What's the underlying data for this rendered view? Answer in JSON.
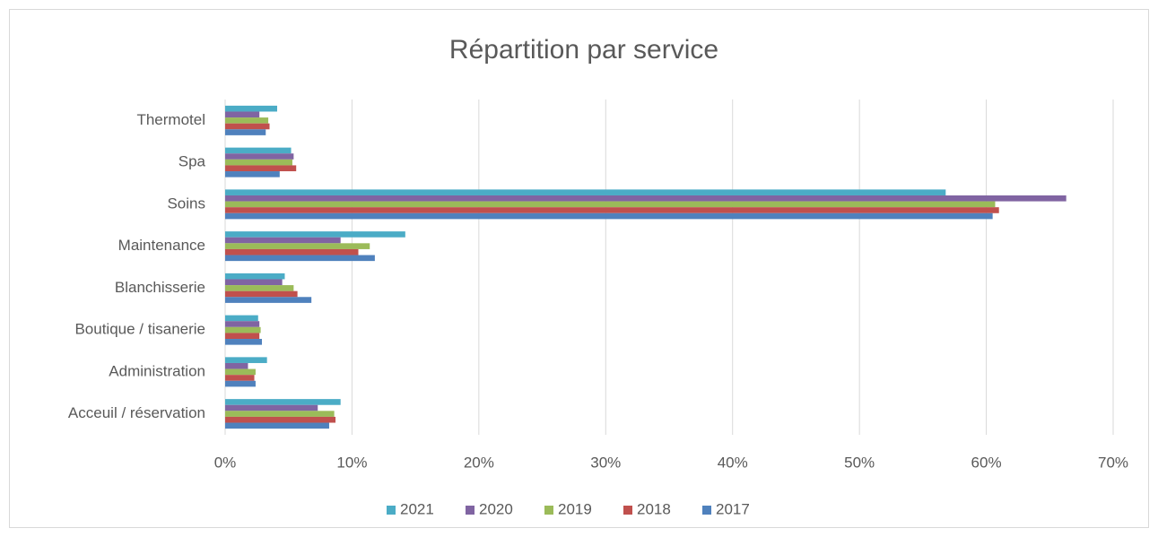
{
  "chart_data": {
    "type": "bar",
    "orientation": "horizontal",
    "title": "Répartition par service",
    "categories": [
      "Thermotel",
      "Spa",
      "Soins",
      "Maintenance",
      "Blanchisserie",
      "Boutique / tisanerie",
      "Administration",
      "Acceuil / réservation"
    ],
    "series": [
      {
        "name": "2021",
        "color": "#4bacc6",
        "values": [
          4.1,
          5.2,
          56.8,
          14.2,
          4.7,
          2.6,
          3.3,
          9.1
        ]
      },
      {
        "name": "2020",
        "color": "#8064a2",
        "values": [
          2.7,
          5.4,
          66.3,
          9.1,
          4.5,
          2.7,
          1.8,
          7.3
        ]
      },
      {
        "name": "2019",
        "color": "#9bbb59",
        "values": [
          3.4,
          5.3,
          60.7,
          11.4,
          5.4,
          2.8,
          2.4,
          8.6
        ]
      },
      {
        "name": "2018",
        "color": "#c0504d",
        "values": [
          3.5,
          5.6,
          61.0,
          10.5,
          5.7,
          2.7,
          2.3,
          8.7
        ]
      },
      {
        "name": "2017",
        "color": "#4f81bd",
        "values": [
          3.2,
          4.3,
          60.5,
          11.8,
          6.8,
          2.9,
          2.4,
          8.2
        ]
      }
    ],
    "xlim": [
      0,
      70
    ],
    "xticks": [
      {
        "value": 0,
        "label": "0%"
      },
      {
        "value": 10,
        "label": "10%"
      },
      {
        "value": 20,
        "label": "20%"
      },
      {
        "value": 30,
        "label": "30%"
      },
      {
        "value": 40,
        "label": "40%"
      },
      {
        "value": 50,
        "label": "50%"
      },
      {
        "value": 60,
        "label": "60%"
      },
      {
        "value": 70,
        "label": "70%"
      }
    ],
    "grid": true,
    "legend": "bottom"
  }
}
